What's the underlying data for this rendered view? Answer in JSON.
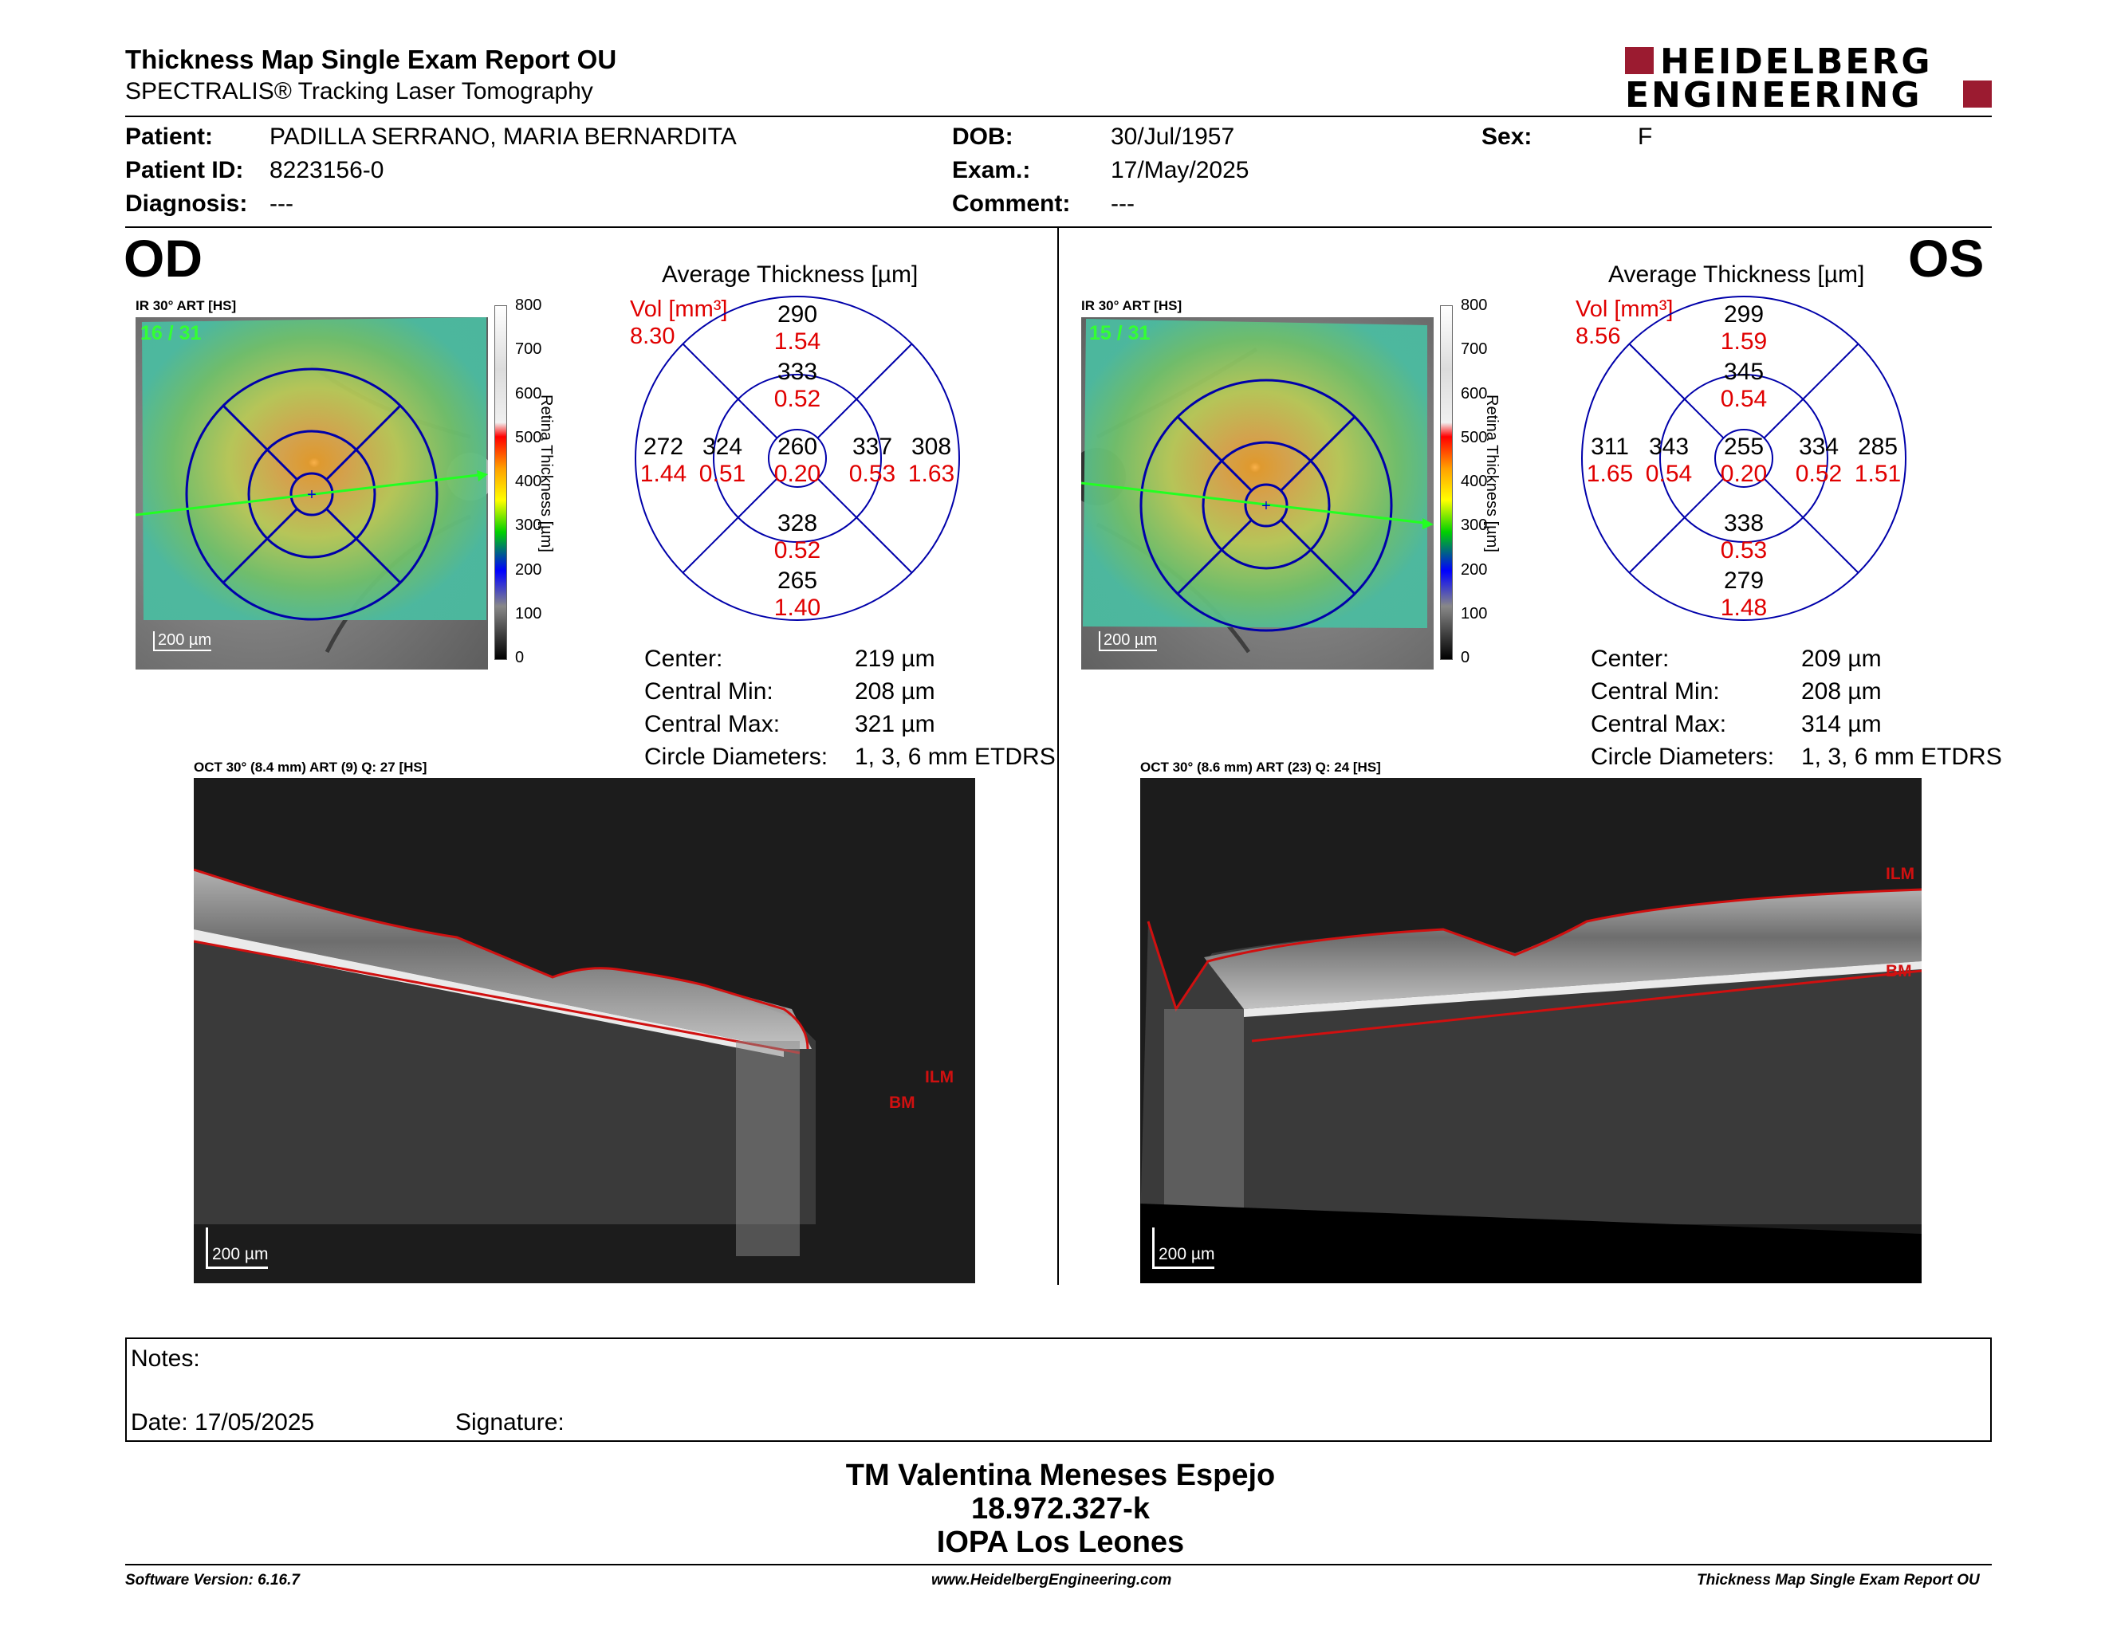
{
  "header": {
    "title": "Thickness Map Single Exam Report OU",
    "subtitle": "SPECTRALIS® Tracking Laser Tomography",
    "logo_line1": "HEIDELBERG",
    "logo_line2": "ENGINEERING"
  },
  "patient": {
    "patient_label": "Patient:",
    "patient_value": "PADILLA SERRANO, MARIA BERNARDITA",
    "id_label": "Patient ID:",
    "id_value": "8223156-0",
    "diag_label": "Diagnosis:",
    "diag_value": "---",
    "dob_label": "DOB:",
    "dob_value": "30/Jul/1957",
    "exam_label": "Exam.:",
    "exam_value": "17/May/2025",
    "comment_label": "Comment:",
    "comment_value": "---",
    "sex_label": "Sex:",
    "sex_value": "F"
  },
  "scale": {
    "ticks": [
      "800",
      "700",
      "600",
      "500",
      "400",
      "300",
      "200",
      "100",
      "0"
    ],
    "title": "Retina  Thickness [µm]"
  },
  "od": {
    "eye": "OD",
    "ir_label": "IR 30° ART [HS]",
    "frames": "16 / 31",
    "ir_scalebar": "200 µm",
    "avg_title": "Average Thickness [µm]",
    "vol_label": "Vol [mm³]",
    "vol_value": "8.30",
    "sectors": {
      "outer_sup": [
        "290",
        "1.54"
      ],
      "inner_sup": [
        "333",
        "0.52"
      ],
      "outer_temp": [
        "272",
        "1.44"
      ],
      "inner_temp": [
        "324",
        "0.51"
      ],
      "center": [
        "260",
        "0.20"
      ],
      "inner_nas": [
        "337",
        "0.53"
      ],
      "outer_nas": [
        "308",
        "1.63"
      ],
      "inner_inf": [
        "328",
        "0.52"
      ],
      "outer_inf": [
        "265",
        "1.40"
      ]
    },
    "stats": [
      {
        "label": "Center:",
        "value": "219 µm"
      },
      {
        "label": "Central Min:",
        "value": "208 µm"
      },
      {
        "label": "Central Max:",
        "value": "321 µm"
      },
      {
        "label": "Circle Diameters:",
        "value": "1, 3, 6 mm ETDRS"
      }
    ],
    "oct_label": "OCT 30° (8.4 mm) ART (9) Q: 27 [HS]",
    "oct_scalebar": "200 µm",
    "ilm": "ILM",
    "bm": "BM"
  },
  "os": {
    "eye": "OS",
    "ir_label": "IR 30° ART [HS]",
    "frames": "15 / 31",
    "ir_scalebar": "200 µm",
    "avg_title": "Average Thickness [µm]",
    "vol_label": "Vol [mm³]",
    "vol_value": "8.56",
    "sectors": {
      "outer_sup": [
        "299",
        "1.59"
      ],
      "inner_sup": [
        "345",
        "0.54"
      ],
      "outer_temp": [
        "311",
        "1.65"
      ],
      "inner_temp": [
        "343",
        "0.54"
      ],
      "center": [
        "255",
        "0.20"
      ],
      "inner_nas": [
        "334",
        "0.52"
      ],
      "outer_nas": [
        "285",
        "1.51"
      ],
      "inner_inf": [
        "338",
        "0.53"
      ],
      "outer_inf": [
        "279",
        "1.48"
      ]
    },
    "stats": [
      {
        "label": "Center:",
        "value": "209 µm"
      },
      {
        "label": "Central Min:",
        "value": "208 µm"
      },
      {
        "label": "Central Max:",
        "value": "314 µm"
      },
      {
        "label": "Circle Diameters:",
        "value": "1, 3, 6 mm ETDRS"
      }
    ],
    "oct_label": "OCT 30° (8.6 mm) ART (23) Q: 24 [HS]",
    "oct_scalebar": "200 µm",
    "ilm": "ILM",
    "bm": "BM"
  },
  "notes": {
    "notes_label": "Notes:",
    "date_label": "Date: 17/05/2025",
    "signature_label": "Signature:"
  },
  "signoff": {
    "name": "TM Valentina Meneses Espejo",
    "id": "18.972.327-k",
    "clinic": "IOPA Los Leones"
  },
  "footer": {
    "software": "Software Version: 6.16.7",
    "website": "www.HeidelbergEngineering.com",
    "report": "Thickness Map Single Exam Report OU"
  }
}
